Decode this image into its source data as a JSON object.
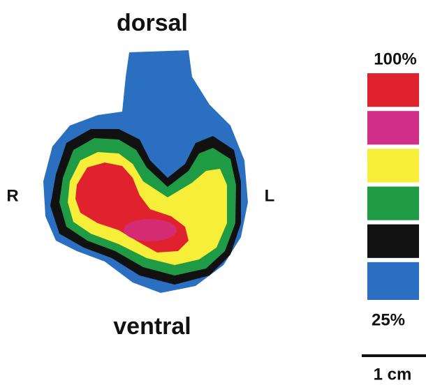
{
  "labels": {
    "top": "dorsal",
    "bottom": "ventral",
    "left": "R",
    "right": "L"
  },
  "color_scale": {
    "max_label": "100%",
    "min_label": "25%",
    "colors": [
      "#e0222f",
      "#d12f8a",
      "#f7ee3a",
      "#1f9a45",
      "#111111",
      "#2a6fc0"
    ]
  },
  "scale_bar": {
    "label": "1 cm"
  }
}
